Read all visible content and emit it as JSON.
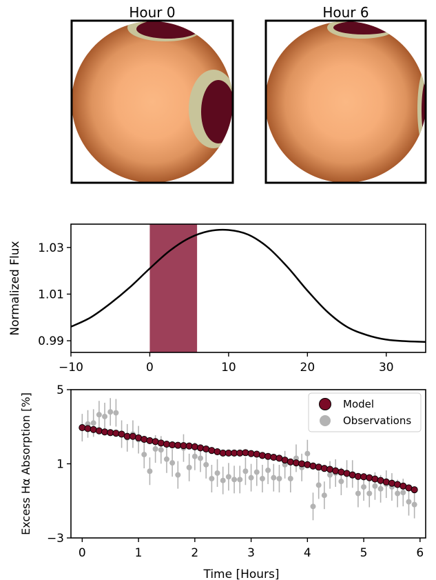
{
  "colors": {
    "spot_dark": "#5c0a1e",
    "spot_light": "#c8c49a",
    "disk_center": "#fbb884",
    "disk_edge": "#a85a2c",
    "band": "#8c1e3c",
    "model": "#7a0a26",
    "obs": "#b3b3b3",
    "curve": "#000000"
  },
  "panels": {
    "left_title": "Hour 0",
    "right_title": "Hour 6"
  },
  "chart_data": [
    {
      "type": "line",
      "title": "",
      "xlabel": "",
      "ylabel": "Normalized Flux",
      "xlim": [
        -10,
        35
      ],
      "ylim": [
        0.985,
        1.04
      ],
      "xticks": [
        -10,
        0,
        10,
        20,
        30
      ],
      "xtick_labels": [
        "−10",
        "0",
        "10",
        "20",
        "30"
      ],
      "yticks": [
        0.99,
        1.01,
        1.03
      ],
      "ytick_labels": [
        "0.99",
        "1.01",
        "1.03"
      ],
      "shaded_region": {
        "x": [
          0,
          6
        ]
      },
      "series": [
        {
          "x": [
            -10,
            -7.5,
            -5,
            -2.5,
            0,
            2.5,
            5,
            7.5,
            10,
            12.5,
            15,
            17.5,
            20,
            22.5,
            25,
            27.5,
            30,
            32.5,
            35
          ],
          "y": [
            0.996,
            1.0,
            1.006,
            1.013,
            1.021,
            1.0285,
            1.034,
            1.037,
            1.0375,
            1.0355,
            1.03,
            1.0215,
            1.0115,
            1.0025,
            0.996,
            0.9925,
            0.9905,
            0.9898,
            0.9895
          ]
        }
      ]
    },
    {
      "type": "scatter",
      "title": "",
      "xlabel": "Time [Hours]",
      "ylabel": "Excess Hα Absorption [%]",
      "xlim": [
        -0.2,
        6.1
      ],
      "ylim": [
        -3,
        5
      ],
      "xticks": [
        0,
        1,
        2,
        3,
        4,
        5,
        6
      ],
      "xtick_labels": [
        "0",
        "1",
        "2",
        "3",
        "4",
        "5",
        "6"
      ],
      "yticks": [
        -3,
        1,
        5
      ],
      "ytick_labels": [
        "−3",
        "1",
        "5"
      ],
      "legend_position": "top-right",
      "legend": [
        "Model",
        "Observations"
      ],
      "model": {
        "x": [
          0,
          0.1,
          0.2,
          0.3,
          0.4,
          0.5,
          0.6,
          0.7,
          0.8,
          0.9,
          1.0,
          1.1,
          1.2,
          1.3,
          1.4,
          1.5,
          1.6,
          1.7,
          1.8,
          1.9,
          2.0,
          2.1,
          2.2,
          2.3,
          2.4,
          2.5,
          2.6,
          2.7,
          2.8,
          2.9,
          3.0,
          3.1,
          3.2,
          3.3,
          3.4,
          3.5,
          3.6,
          3.7,
          3.8,
          3.9,
          4.0,
          4.1,
          4.2,
          4.3,
          4.4,
          4.5,
          4.6,
          4.7,
          4.8,
          4.9,
          5.0,
          5.1,
          5.2,
          5.3,
          5.4,
          5.5,
          5.6,
          5.7,
          5.8,
          5.9
        ],
        "y": [
          2.95,
          2.9,
          2.85,
          2.78,
          2.72,
          2.68,
          2.65,
          2.6,
          2.48,
          2.48,
          2.4,
          2.32,
          2.25,
          2.2,
          2.12,
          2.06,
          2.02,
          2.0,
          1.98,
          1.96,
          1.92,
          1.86,
          1.8,
          1.72,
          1.65,
          1.58,
          1.58,
          1.58,
          1.58,
          1.6,
          1.55,
          1.52,
          1.45,
          1.4,
          1.35,
          1.3,
          1.2,
          1.1,
          1.05,
          1.0,
          0.95,
          0.88,
          0.82,
          0.75,
          0.7,
          0.62,
          0.55,
          0.48,
          0.4,
          0.32,
          0.3,
          0.25,
          0.18,
          0.1,
          0.02,
          -0.05,
          -0.12,
          -0.2,
          -0.3,
          -0.4
        ]
      },
      "observations": {
        "x": [
          0,
          0.1,
          0.2,
          0.3,
          0.4,
          0.5,
          0.6,
          0.7,
          0.8,
          0.9,
          1.0,
          1.1,
          1.2,
          1.3,
          1.4,
          1.5,
          1.6,
          1.7,
          1.8,
          1.9,
          2.0,
          2.1,
          2.2,
          2.3,
          2.4,
          2.5,
          2.6,
          2.7,
          2.8,
          2.9,
          3.0,
          3.1,
          3.2,
          3.3,
          3.4,
          3.5,
          3.6,
          3.7,
          3.8,
          3.9,
          4.0,
          4.1,
          4.2,
          4.3,
          4.4,
          4.5,
          4.6,
          4.7,
          4.8,
          4.9,
          5.0,
          5.1,
          5.2,
          5.3,
          5.4,
          5.5,
          5.6,
          5.7,
          5.8,
          5.9
        ],
        "y": [
          2.95,
          3.15,
          3.2,
          3.65,
          3.55,
          3.8,
          3.75,
          2.6,
          2.4,
          2.6,
          2.3,
          1.5,
          0.6,
          1.8,
          1.75,
          1.25,
          1.05,
          0.4,
          1.85,
          0.8,
          1.4,
          1.3,
          0.95,
          0.2,
          0.5,
          0.1,
          0.3,
          0.15,
          0.15,
          0.6,
          0.25,
          0.55,
          0.2,
          0.65,
          0.25,
          0.2,
          0.95,
          0.2,
          1.3,
          0.8,
          1.55,
          -1.3,
          -0.15,
          -0.7,
          0.4,
          0.5,
          0.05,
          0.45,
          0.45,
          -0.6,
          -0.25,
          -0.6,
          -0.2,
          -0.35,
          -0.1,
          -0.25,
          -0.6,
          -0.55,
          -1.05,
          -1.2
        ]
      }
    }
  ]
}
